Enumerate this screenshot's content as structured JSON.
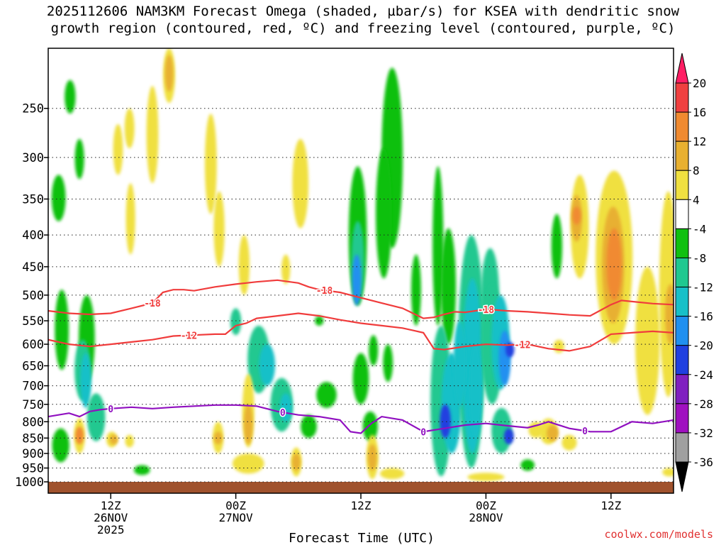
{
  "chart_data": {
    "type": "heatmap",
    "title_line1": "2025112606 NAM3KM Forecast Omega (shaded, µbar/s) for KSEA with dendritic snow",
    "title_line2": "growth region (contoured, red, ºC) and freezing level (contoured, purple, ºC)",
    "xlabel": "Forecast Time (UTC)",
    "ylabel": "",
    "y_axis": {
      "ticks": [
        250,
        300,
        350,
        400,
        450,
        500,
        550,
        600,
        650,
        700,
        750,
        800,
        850,
        900,
        950,
        1000
      ],
      "ylim": [
        200,
        1000
      ],
      "scale": "log",
      "units": "hPa"
    },
    "x_axis": {
      "xlim": [
        0,
        60
      ],
      "units": "hours from 2025-11-26 06Z",
      "ticks": [
        {
          "hour": 6,
          "label1": "12Z",
          "label2": "26NOV",
          "label3": "2025"
        },
        {
          "hour": 18,
          "label1": "00Z",
          "label2": "27NOV",
          "label3": ""
        },
        {
          "hour": 30,
          "label1": "12Z",
          "label2": "",
          "label3": ""
        },
        {
          "hour": 42,
          "label1": "00Z",
          "label2": "28NOV",
          "label3": ""
        },
        {
          "hour": 54,
          "label1": "12Z",
          "label2": "",
          "label3": ""
        }
      ]
    },
    "colorbar": {
      "levels": [
        20,
        16,
        12,
        8,
        4,
        -4,
        -8,
        -12,
        -16,
        -20,
        -24,
        -28,
        -32,
        -36
      ],
      "colors": [
        "#ff1e64",
        "#f04040",
        "#f08a30",
        "#e8b030",
        "#f0e040",
        "#ffffff",
        "#10c010",
        "#20c890",
        "#18c0c8",
        "#2090f0",
        "#2040e0",
        "#8020c0",
        "#a010c0",
        "#a0a0a0",
        "#000000"
      ]
    },
    "series": [
      {
        "name": "-18 °C isotherm (upper)",
        "color": "#f03c3c",
        "label": "-18",
        "x": [
          0,
          2,
          4,
          6,
          8,
          10,
          11,
          12,
          13,
          14,
          16,
          18,
          19,
          20,
          22,
          24,
          25,
          26,
          28,
          30,
          32,
          34,
          35,
          36,
          37,
          38,
          39,
          40,
          42,
          44,
          46,
          48,
          50,
          52,
          54,
          55,
          56,
          58,
          60
        ],
        "y": [
          530,
          535,
          537,
          535,
          525,
          515,
          495,
          490,
          490,
          492,
          485,
          480,
          478,
          476,
          473,
          478,
          485,
          490,
          495,
          505,
          515,
          525,
          535,
          545,
          543,
          537,
          532,
          533,
          527,
          530,
          532,
          535,
          538,
          540,
          518,
          510,
          512,
          516,
          518
        ]
      },
      {
        "name": "-12 °C isotherm (lower)",
        "color": "#f03c3c",
        "label": "-12",
        "x": [
          0,
          2,
          4,
          6,
          8,
          10,
          12,
          14,
          16,
          17,
          18,
          19,
          20,
          22,
          24,
          26,
          28,
          30,
          32,
          34,
          35,
          36,
          37,
          38,
          40,
          42,
          44,
          46,
          48,
          50,
          52,
          54,
          56,
          58,
          60
        ],
        "y": [
          590,
          600,
          605,
          600,
          595,
          590,
          582,
          580,
          578,
          578,
          560,
          555,
          545,
          540,
          535,
          540,
          548,
          555,
          560,
          565,
          570,
          575,
          610,
          612,
          605,
          600,
          602,
          600,
          610,
          615,
          605,
          578,
          575,
          572,
          575
        ]
      },
      {
        "name": "0 °C freezing level",
        "color": "#9010c0",
        "label": "0",
        "x": [
          0,
          2,
          3,
          4,
          5,
          6,
          8,
          10,
          12,
          14,
          16,
          18,
          20,
          22,
          24,
          26,
          28,
          29,
          30,
          31,
          32,
          34,
          36,
          38,
          40,
          42,
          44,
          46,
          47,
          48,
          50,
          51,
          52,
          54,
          56,
          58,
          60
        ],
        "y": [
          785,
          775,
          785,
          770,
          765,
          762,
          758,
          762,
          758,
          755,
          752,
          752,
          755,
          770,
          780,
          785,
          795,
          830,
          835,
          805,
          785,
          795,
          830,
          820,
          810,
          805,
          812,
          818,
          810,
          800,
          820,
          825,
          830,
          830,
          800,
          805,
          795
        ]
      }
    ],
    "omega_cells": [
      {
        "cx": 1.0,
        "p1": 320,
        "p2": 380,
        "w": 0.8,
        "v": -6
      },
      {
        "cx": 2.1,
        "p1": 225,
        "p2": 255,
        "w": 0.5,
        "v": -6
      },
      {
        "cx": 3.0,
        "p1": 280,
        "p2": 325,
        "w": 0.35,
        "v": -6
      },
      {
        "cx": 6.7,
        "p1": 265,
        "p2": 320,
        "w": 0.4,
        "v": 6
      },
      {
        "cx": 7.8,
        "p1": 250,
        "p2": 290,
        "w": 0.4,
        "v": 6
      },
      {
        "cx": 7.9,
        "p1": 330,
        "p2": 430,
        "w": 0.35,
        "v": 6
      },
      {
        "cx": 10.0,
        "p1": 230,
        "p2": 330,
        "w": 0.6,
        "v": 6
      },
      {
        "cx": 11.6,
        "p1": 200,
        "p2": 245,
        "w": 0.6,
        "v": 6
      },
      {
        "cx": 11.6,
        "p1": 205,
        "p2": 235,
        "w": 0.25,
        "v": 10
      },
      {
        "cx": 15.6,
        "p1": 255,
        "p2": 370,
        "w": 0.6,
        "v": 6
      },
      {
        "cx": 16.4,
        "p1": 340,
        "p2": 450,
        "w": 0.5,
        "v": 6
      },
      {
        "cx": 18.8,
        "p1": 400,
        "p2": 500,
        "w": 0.5,
        "v": 6
      },
      {
        "cx": 24.2,
        "p1": 280,
        "p2": 390,
        "w": 1.0,
        "v": 6
      },
      {
        "cx": 22.8,
        "p1": 430,
        "p2": 480,
        "w": 0.3,
        "v": 6
      },
      {
        "cx": 18.0,
        "p1": 525,
        "p2": 580,
        "w": 0.5,
        "v": -8
      },
      {
        "cx": 20.2,
        "p1": 560,
        "p2": 720,
        "w": 1.6,
        "v": -8
      },
      {
        "cx": 21.0,
        "p1": 600,
        "p2": 700,
        "w": 1.0,
        "v": -12
      },
      {
        "cx": 22.4,
        "p1": 680,
        "p2": 830,
        "w": 1.6,
        "v": -10
      },
      {
        "cx": 22.8,
        "p1": 720,
        "p2": 800,
        "w": 0.6,
        "v": -14
      },
      {
        "cx": 25.0,
        "p1": 780,
        "p2": 850,
        "w": 1.0,
        "v": -6
      },
      {
        "cx": 26.7,
        "p1": 690,
        "p2": 760,
        "w": 1.4,
        "v": -6
      },
      {
        "cx": 26.0,
        "p1": 540,
        "p2": 560,
        "w": 0.3,
        "v": -6
      },
      {
        "cx": 30.0,
        "p1": 620,
        "p2": 750,
        "w": 1.0,
        "v": -6
      },
      {
        "cx": 29.7,
        "p1": 310,
        "p2": 520,
        "w": 1.2,
        "v": -6
      },
      {
        "cx": 29.7,
        "p1": 380,
        "p2": 510,
        "w": 0.7,
        "v": -10
      },
      {
        "cx": 29.6,
        "p1": 430,
        "p2": 520,
        "w": 0.35,
        "v": -16
      },
      {
        "cx": 33.0,
        "p1": 215,
        "p2": 420,
        "w": 1.5,
        "v": -6
      },
      {
        "cx": 32.2,
        "p1": 290,
        "p2": 470,
        "w": 1.0,
        "v": -6
      },
      {
        "cx": 30.9,
        "p1": 770,
        "p2": 860,
        "w": 0.9,
        "v": -6
      },
      {
        "cx": 31.2,
        "p1": 580,
        "p2": 650,
        "w": 0.35,
        "v": -6
      },
      {
        "cx": 32.6,
        "p1": 600,
        "p2": 690,
        "w": 0.4,
        "v": -6
      },
      {
        "cx": 35.3,
        "p1": 430,
        "p2": 560,
        "w": 0.4,
        "v": -6
      },
      {
        "cx": 37.4,
        "p1": 310,
        "p2": 560,
        "w": 0.5,
        "v": -6
      },
      {
        "cx": 38.4,
        "p1": 390,
        "p2": 600,
        "w": 0.9,
        "v": -6
      },
      {
        "cx": 37.7,
        "p1": 560,
        "p2": 980,
        "w": 1.5,
        "v": -8
      },
      {
        "cx": 38.7,
        "p1": 620,
        "p2": 900,
        "w": 1.4,
        "v": -12
      },
      {
        "cx": 38.1,
        "p1": 750,
        "p2": 850,
        "w": 0.5,
        "v": -20
      },
      {
        "cx": 40.6,
        "p1": 400,
        "p2": 950,
        "w": 2.0,
        "v": -8
      },
      {
        "cx": 40.7,
        "p1": 470,
        "p2": 900,
        "w": 1.4,
        "v": -12
      },
      {
        "cx": 39.5,
        "p1": 550,
        "p2": 760,
        "w": 0.7,
        "v": -14
      },
      {
        "cx": 42.4,
        "p1": 420,
        "p2": 600,
        "w": 1.2,
        "v": -8
      },
      {
        "cx": 42.6,
        "p1": 480,
        "p2": 750,
        "w": 1.6,
        "v": -8
      },
      {
        "cx": 43.4,
        "p1": 500,
        "p2": 710,
        "w": 1.2,
        "v": -12
      },
      {
        "cx": 43.8,
        "p1": 570,
        "p2": 700,
        "w": 0.6,
        "v": -16
      },
      {
        "cx": 43.5,
        "p1": 760,
        "p2": 900,
        "w": 1.4,
        "v": -10
      },
      {
        "cx": 44.2,
        "p1": 820,
        "p2": 870,
        "w": 0.4,
        "v": -20
      },
      {
        "cx": 44.3,
        "p1": 595,
        "p2": 630,
        "w": 0.3,
        "v": -20
      },
      {
        "cx": 41.0,
        "p1": 600,
        "p2": 850,
        "w": 0.6,
        "v": -14
      },
      {
        "cx": 48.8,
        "p1": 370,
        "p2": 470,
        "w": 0.5,
        "v": -6
      },
      {
        "cx": 49.0,
        "p1": 590,
        "p2": 620,
        "w": 0.5,
        "v": 6
      },
      {
        "cx": 51.0,
        "p1": 320,
        "p2": 470,
        "w": 1.2,
        "v": 6
      },
      {
        "cx": 50.7,
        "p1": 345,
        "p2": 410,
        "w": 0.5,
        "v": 10
      },
      {
        "cx": 50.7,
        "p1": 360,
        "p2": 385,
        "w": 0.25,
        "v": 12
      },
      {
        "cx": 54.3,
        "p1": 315,
        "p2": 600,
        "w": 3.0,
        "v": 6
      },
      {
        "cx": 54.2,
        "p1": 360,
        "p2": 555,
        "w": 1.6,
        "v": 10
      },
      {
        "cx": 54.3,
        "p1": 390,
        "p2": 510,
        "w": 0.9,
        "v": 13
      },
      {
        "cx": 57.5,
        "p1": 450,
        "p2": 780,
        "w": 1.8,
        "v": 6
      },
      {
        "cx": 59.5,
        "p1": 340,
        "p2": 730,
        "w": 1.2,
        "v": 6
      },
      {
        "cx": 59.7,
        "p1": 480,
        "p2": 600,
        "w": 0.5,
        "v": 10
      },
      {
        "cx": 48.0,
        "p1": 790,
        "p2": 870,
        "w": 1.2,
        "v": 6
      },
      {
        "cx": 48.4,
        "p1": 810,
        "p2": 860,
        "w": 0.6,
        "v": 10
      },
      {
        "cx": 46.8,
        "p1": 800,
        "p2": 850,
        "w": 0.9,
        "v": 6
      },
      {
        "cx": 50.0,
        "p1": 840,
        "p2": 890,
        "w": 0.9,
        "v": 6
      },
      {
        "cx": 1.3,
        "p1": 490,
        "p2": 660,
        "w": 0.8,
        "v": -6
      },
      {
        "cx": 3.7,
        "p1": 500,
        "p2": 690,
        "w": 1.0,
        "v": -6
      },
      {
        "cx": 3.3,
        "p1": 590,
        "p2": 740,
        "w": 1.0,
        "v": -8
      },
      {
        "cx": 3.6,
        "p1": 620,
        "p2": 760,
        "w": 0.5,
        "v": -12
      },
      {
        "cx": 4.6,
        "p1": 720,
        "p2": 860,
        "w": 1.2,
        "v": -8
      },
      {
        "cx": 1.2,
        "p1": 820,
        "p2": 930,
        "w": 1.1,
        "v": -6
      },
      {
        "cx": 3.0,
        "p1": 790,
        "p2": 900,
        "w": 0.5,
        "v": 6
      },
      {
        "cx": 3.0,
        "p1": 815,
        "p2": 870,
        "w": 0.25,
        "v": 12
      },
      {
        "cx": 6.1,
        "p1": 830,
        "p2": 880,
        "w": 0.5,
        "v": 6
      },
      {
        "cx": 6.3,
        "p1": 840,
        "p2": 870,
        "w": 0.25,
        "v": 10
      },
      {
        "cx": 7.8,
        "p1": 840,
        "p2": 880,
        "w": 0.3,
        "v": 6
      },
      {
        "cx": 9.0,
        "p1": 940,
        "p2": 975,
        "w": 1.0,
        "v": -6
      },
      {
        "cx": 16.3,
        "p1": 800,
        "p2": 900,
        "w": 0.5,
        "v": 6
      },
      {
        "cx": 16.3,
        "p1": 830,
        "p2": 870,
        "w": 0.25,
        "v": 10
      },
      {
        "cx": 19.2,
        "p1": 670,
        "p2": 880,
        "w": 0.6,
        "v": 6
      },
      {
        "cx": 19.2,
        "p1": 750,
        "p2": 870,
        "w": 0.3,
        "v": 10
      },
      {
        "cx": 19.2,
        "p1": 900,
        "p2": 970,
        "w": 2.5,
        "v": 6
      },
      {
        "cx": 23.8,
        "p1": 880,
        "p2": 980,
        "w": 0.5,
        "v": 6
      },
      {
        "cx": 23.8,
        "p1": 900,
        "p2": 960,
        "w": 0.25,
        "v": 10
      },
      {
        "cx": 31.1,
        "p1": 840,
        "p2": 990,
        "w": 0.6,
        "v": 6
      },
      {
        "cx": 31.1,
        "p1": 870,
        "p2": 960,
        "w": 0.3,
        "v": 10
      },
      {
        "cx": 33.0,
        "p1": 950,
        "p2": 990,
        "w": 1.8,
        "v": 6
      },
      {
        "cx": 42.0,
        "p1": 970,
        "p2": 995,
        "w": 3.0,
        "v": 6
      },
      {
        "cx": 46.0,
        "p1": 920,
        "p2": 960,
        "w": 0.8,
        "v": -6
      },
      {
        "cx": 59.6,
        "p1": 950,
        "p2": 980,
        "w": 0.8,
        "v": 6
      }
    ]
  },
  "credit": "coolwx.com/models"
}
